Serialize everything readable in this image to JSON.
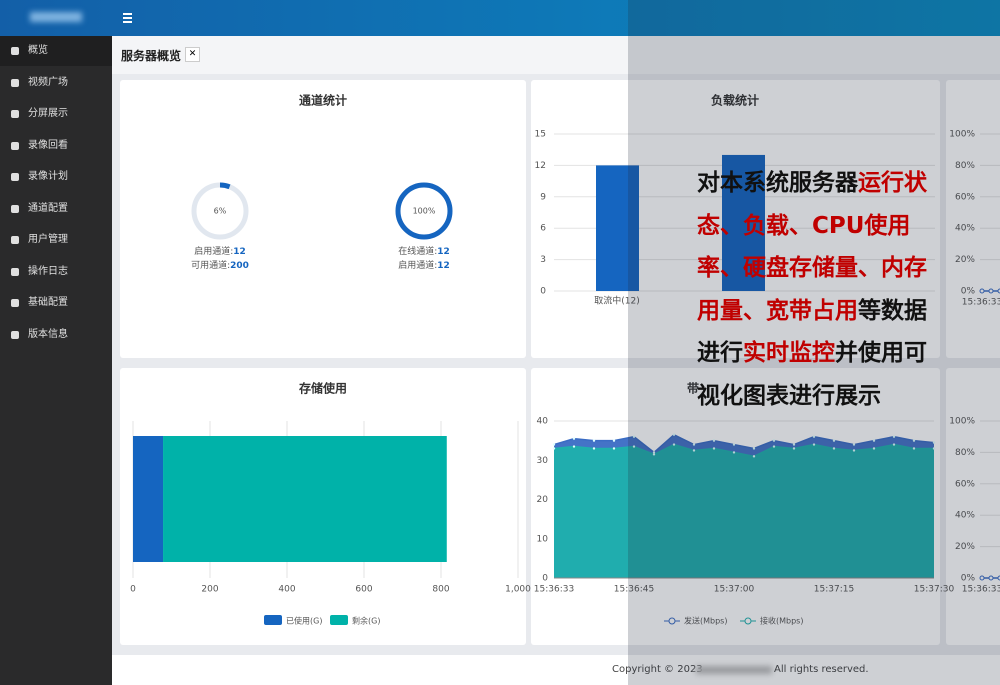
{
  "app": {
    "menu": [
      "概览",
      "视频广场",
      "分屏展示",
      "录像回看",
      "录像计划",
      "通道配置",
      "用户管理",
      "操作日志",
      "基础配置",
      "版本信息"
    ],
    "page_title": "服务器概览",
    "footer": {
      "copyright": "Copyright © 2023",
      "rights": "All rights reserved."
    }
  },
  "overlay": {
    "segments": [
      {
        "text": "对本系统服务器",
        "highlight": false
      },
      {
        "text": "运行状态、负载、CPU使用率、硬盘存储量、内存用量、宽带占用",
        "highlight": true
      },
      {
        "text": "等数据进行",
        "highlight": false
      },
      {
        "text": "实时监控",
        "highlight": true
      },
      {
        "text": "并使用可视化图表进行展示",
        "highlight": false
      }
    ]
  },
  "chart_data": [
    {
      "type": "gauge",
      "title": "通道统计",
      "values": [
        6,
        100
      ],
      "value_labels": [
        "6%",
        "100%"
      ],
      "ylim": [
        0,
        100
      ],
      "color": "#1565c0",
      "stats": [
        [
          {
            "label": "启用通道:",
            "value": 12
          },
          {
            "label": "可用通道:",
            "value": 200
          }
        ],
        [
          {
            "label": "在线通道:",
            "value": 12
          },
          {
            "label": "启用通道:",
            "value": 12
          }
        ]
      ]
    },
    {
      "type": "bar",
      "title": "负载统计",
      "categories": [
        "取流中(12)",
        null
      ],
      "values": [
        12,
        13
      ],
      "color": "#1565c0",
      "ylim": [
        0,
        15
      ],
      "yticks": [
        0,
        3,
        6,
        9,
        12,
        15
      ],
      "grid": true
    },
    {
      "type": "line",
      "x": [
        "15:36:33",
        null,
        null
      ],
      "series": [
        {
          "color": "#3a6cc4",
          "values": [
            0,
            0,
            0
          ]
        }
      ],
      "ylim": [
        0,
        100
      ],
      "yticks": [
        {
          "value": 0,
          "label": "0%"
        },
        {
          "value": 20,
          "label": "20%"
        },
        {
          "value": 40,
          "label": "40%"
        },
        {
          "value": 60,
          "label": "60%"
        },
        {
          "value": 80,
          "label": "80%"
        },
        {
          "value": 100,
          "label": "100%"
        }
      ],
      "grid": true
    },
    {
      "type": "stacked-hbar",
      "title": "存储使用",
      "series": [
        {
          "name": "已使用(G)",
          "color": "#1565c0",
          "values": [
            78
          ]
        },
        {
          "name": "剩余(G)",
          "color": "#00b2a9",
          "values": [
            737
          ]
        }
      ],
      "xlim": [
        0,
        1000
      ],
      "xticks": [
        0,
        200,
        400,
        600,
        800,
        {
          "value": 1000,
          "label": "1,000"
        }
      ],
      "grid": true,
      "legend": "bottom"
    },
    {
      "type": "area",
      "title": "带",
      "x": [
        "15:36:33",
        "15:36:36",
        "15:36:39",
        "15:36:42",
        "15:36:45",
        "15:36:48",
        "15:36:51",
        "15:36:54",
        "15:36:57",
        "15:37:00",
        "15:37:03",
        "15:37:06",
        "15:37:09",
        "15:37:12",
        "15:37:15",
        "15:37:18",
        "15:37:21",
        "15:37:24",
        "15:37:27",
        "15:37:30"
      ],
      "xticks": [
        "15:36:33",
        "15:36:45",
        "15:37:00",
        "15:37:15",
        "15:37:30"
      ],
      "series": [
        {
          "name": "发送(Mbps)",
          "color": "#3a6cc4",
          "values": [
            34,
            35.5,
            35,
            35,
            36,
            32,
            36.5,
            34,
            35,
            34,
            33,
            35,
            34,
            36,
            35,
            34,
            35,
            36,
            35,
            34.5
          ]
        },
        {
          "name": "接收(Mbps)",
          "color": "#1fb0ad",
          "values": [
            33,
            33.5,
            33,
            33,
            33.5,
            31.5,
            34,
            32.5,
            33,
            32,
            31,
            33.5,
            33,
            34,
            33,
            32.5,
            33,
            34,
            33,
            33
          ]
        }
      ],
      "ylim": [
        0,
        40
      ],
      "yticks": [
        0,
        10,
        20,
        30,
        40
      ],
      "grid": true,
      "legend": "bottom"
    },
    {
      "type": "line",
      "x": [
        "15:36:33",
        null,
        null
      ],
      "series": [
        {
          "color": "#3a6cc4",
          "values": [
            0,
            0,
            0
          ]
        }
      ],
      "ylim": [
        0,
        100
      ],
      "yticks": [
        {
          "value": 0,
          "label": "0%"
        },
        {
          "value": 20,
          "label": "20%"
        },
        {
          "value": 40,
          "label": "40%"
        },
        {
          "value": 60,
          "label": "60%"
        },
        {
          "value": 80,
          "label": "80%"
        },
        {
          "value": 100,
          "label": "100%"
        }
      ],
      "grid": true
    }
  ]
}
